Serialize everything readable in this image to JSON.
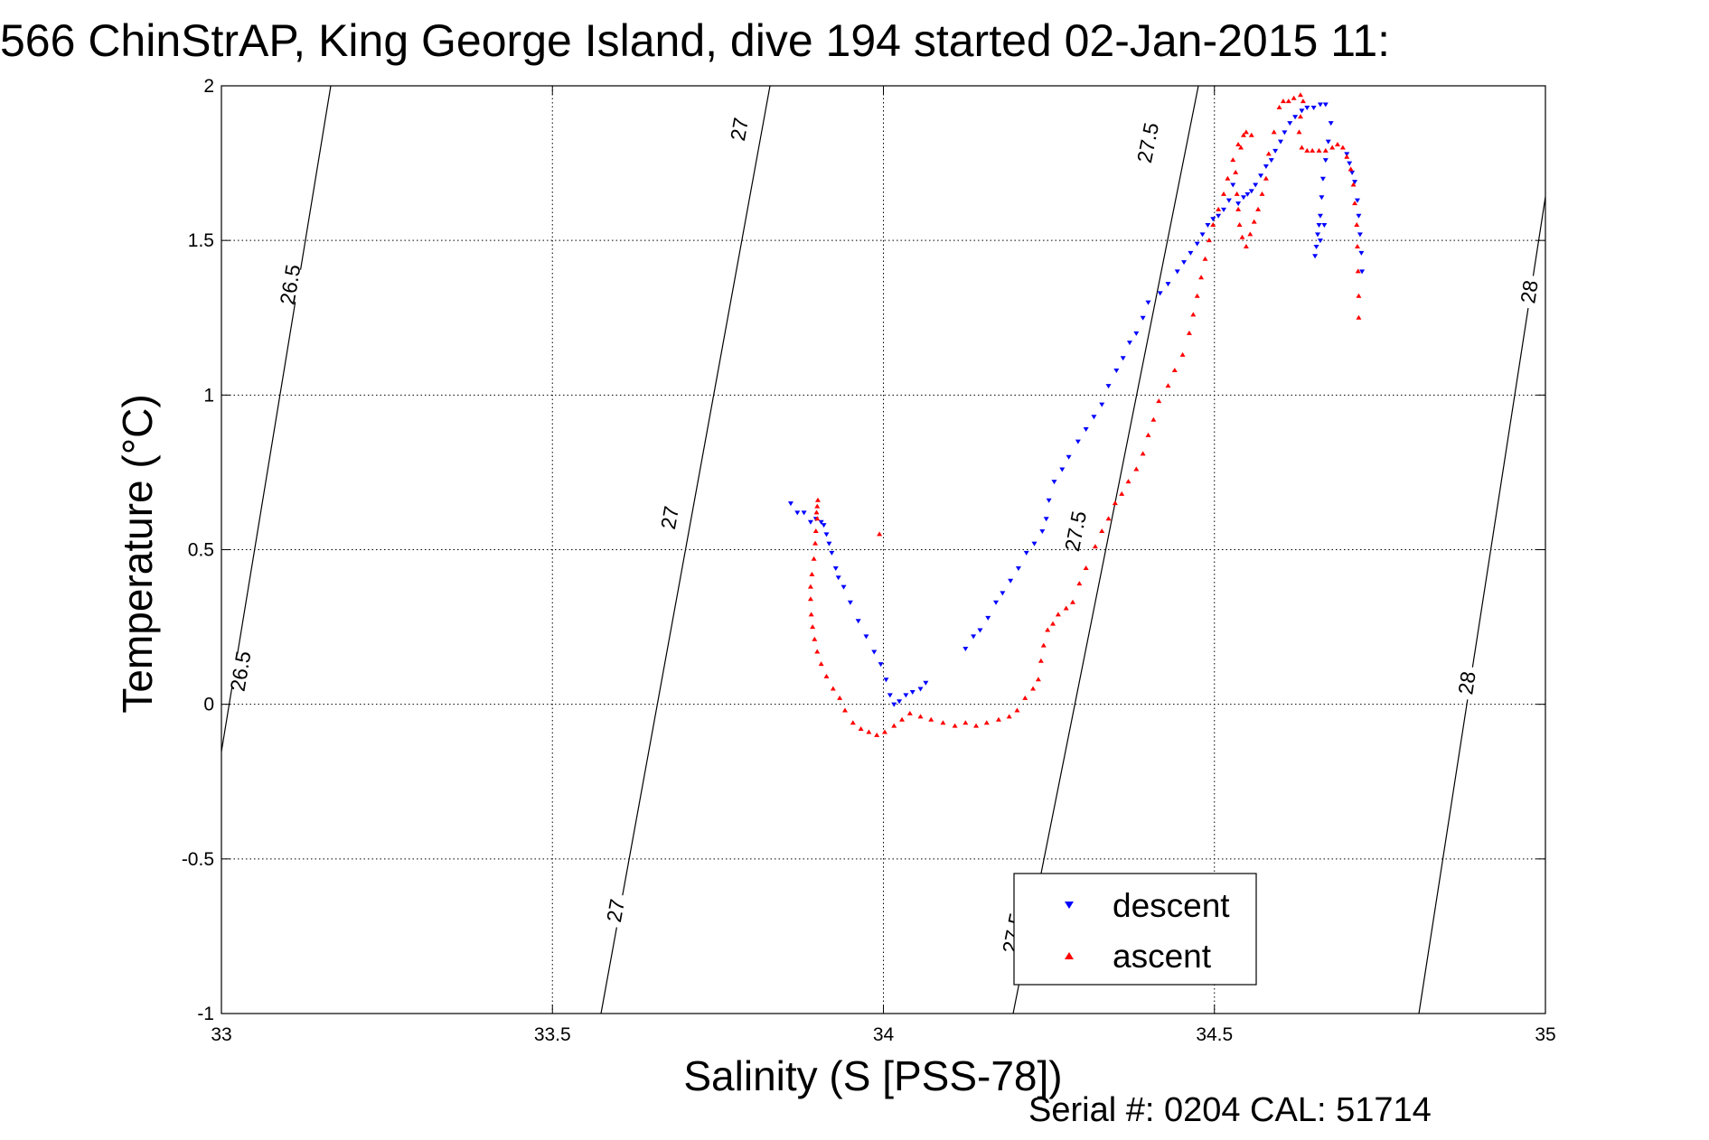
{
  "title": "566 ChinStrAP, King George Island, dive 194 started 02-Jan-2015 11:",
  "footer": "Serial #: 0204  CAL: 51714",
  "chart_data": {
    "type": "scatter",
    "title": "566 ChinStrAP, King George Island, dive 194 started 02-Jan-2015 11:",
    "xlabel": "Salinity (S [PSS-78])",
    "ylabel": "Temperature (°C)",
    "xlim": [
      33,
      35
    ],
    "ylim": [
      -1,
      2
    ],
    "xticks": [
      33,
      33.5,
      34,
      34.5,
      35
    ],
    "yticks": [
      -1,
      -0.5,
      0,
      0.5,
      1,
      1.5,
      2
    ],
    "xtick_labels": [
      "33",
      "33.5",
      "34",
      "34.5",
      "35"
    ],
    "ytick_labels": [
      "-1",
      "-0.5",
      "0",
      "0.5",
      "1",
      "1.5",
      "2"
    ],
    "grid": true,
    "legend_position": "bottom-center",
    "series": [
      {
        "name": "descent",
        "marker": "triangle-down",
        "color": "#0000ff",
        "points": [
          [
            34.668,
            1.94
          ],
          [
            34.66,
            1.94
          ],
          [
            34.65,
            1.93
          ],
          [
            34.64,
            1.93
          ],
          [
            34.632,
            1.92
          ],
          [
            34.622,
            1.9
          ],
          [
            34.614,
            1.88
          ],
          [
            34.606,
            1.85
          ],
          [
            34.6,
            1.82
          ],
          [
            34.592,
            1.79
          ],
          [
            34.586,
            1.76
          ],
          [
            34.578,
            1.74
          ],
          [
            34.57,
            1.71
          ],
          [
            34.562,
            1.68
          ],
          [
            34.556,
            1.66
          ],
          [
            34.55,
            1.65
          ],
          [
            34.544,
            1.64
          ],
          [
            34.536,
            1.62
          ],
          [
            34.528,
            1.68
          ],
          [
            34.522,
            1.63
          ],
          [
            34.514,
            1.6
          ],
          [
            34.506,
            1.58
          ],
          [
            34.498,
            1.57
          ],
          [
            34.49,
            1.55
          ],
          [
            34.482,
            1.52
          ],
          [
            34.474,
            1.49
          ],
          [
            34.464,
            1.46
          ],
          [
            34.454,
            1.43
          ],
          [
            34.444,
            1.4
          ],
          [
            34.43,
            1.36
          ],
          [
            34.418,
            1.33
          ],
          [
            34.4,
            1.3
          ],
          [
            34.392,
            1.25
          ],
          [
            34.382,
            1.2
          ],
          [
            34.372,
            1.17
          ],
          [
            34.362,
            1.12
          ],
          [
            34.352,
            1.08
          ],
          [
            34.34,
            1.03
          ],
          [
            34.33,
            0.97
          ],
          [
            34.318,
            0.93
          ],
          [
            34.306,
            0.89
          ],
          [
            34.294,
            0.85
          ],
          [
            34.28,
            0.8
          ],
          [
            34.27,
            0.76
          ],
          [
            34.258,
            0.72
          ],
          [
            34.25,
            0.66
          ],
          [
            34.246,
            0.6
          ],
          [
            34.24,
            0.56
          ],
          [
            34.228,
            0.52
          ],
          [
            34.216,
            0.49
          ],
          [
            34.204,
            0.44
          ],
          [
            34.192,
            0.4
          ],
          [
            34.18,
            0.36
          ],
          [
            34.17,
            0.33
          ],
          [
            34.158,
            0.28
          ],
          [
            34.146,
            0.24
          ],
          [
            34.136,
            0.22
          ],
          [
            34.124,
            0.18
          ],
          [
            34.064,
            0.07
          ],
          [
            34.056,
            0.05
          ],
          [
            34.044,
            0.04
          ],
          [
            34.034,
            0.03
          ],
          [
            34.024,
            0.01
          ],
          [
            34.016,
            0.0
          ],
          [
            34.01,
            0.03
          ],
          [
            34.004,
            0.08
          ],
          [
            33.996,
            0.13
          ],
          [
            33.986,
            0.17
          ],
          [
            33.974,
            0.22
          ],
          [
            33.962,
            0.27
          ],
          [
            33.95,
            0.33
          ],
          [
            33.94,
            0.38
          ],
          [
            33.932,
            0.41
          ],
          [
            33.928,
            0.44
          ],
          [
            33.922,
            0.49
          ],
          [
            33.918,
            0.52
          ],
          [
            33.914,
            0.55
          ],
          [
            33.91,
            0.58
          ],
          [
            33.906,
            0.59
          ],
          [
            33.898,
            0.6
          ],
          [
            33.89,
            0.59
          ],
          [
            33.88,
            0.62
          ],
          [
            33.87,
            0.62
          ],
          [
            33.86,
            0.65
          ],
          [
            34.676,
            1.88
          ],
          [
            34.672,
            1.82
          ],
          [
            34.668,
            1.76
          ],
          [
            34.664,
            1.7
          ],
          [
            34.662,
            1.64
          ],
          [
            34.66,
            1.58
          ],
          [
            34.658,
            1.55
          ],
          [
            34.656,
            1.52
          ],
          [
            34.654,
            1.48
          ],
          [
            34.652,
            1.45
          ],
          [
            34.66,
            1.5
          ],
          [
            34.666,
            1.55
          ],
          [
            34.7,
            1.78
          ],
          [
            34.704,
            1.75
          ],
          [
            34.708,
            1.72
          ],
          [
            34.712,
            1.69
          ],
          [
            34.716,
            1.63
          ],
          [
            34.718,
            1.58
          ],
          [
            34.72,
            1.52
          ],
          [
            34.722,
            1.46
          ],
          [
            34.723,
            1.4
          ]
        ]
      },
      {
        "name": "ascent",
        "marker": "triangle-up",
        "color": "#ff0000",
        "points": [
          [
            34.718,
            1.25
          ],
          [
            34.718,
            1.32
          ],
          [
            34.717,
            1.4
          ],
          [
            34.716,
            1.48
          ],
          [
            34.715,
            1.55
          ],
          [
            34.712,
            1.62
          ],
          [
            34.71,
            1.68
          ],
          [
            34.706,
            1.73
          ],
          [
            34.7,
            1.77
          ],
          [
            34.694,
            1.8
          ],
          [
            34.686,
            1.81
          ],
          [
            34.678,
            1.8
          ],
          [
            34.668,
            1.79
          ],
          [
            34.658,
            1.79
          ],
          [
            34.648,
            1.79
          ],
          [
            34.64,
            1.79
          ],
          [
            34.632,
            1.8
          ],
          [
            34.628,
            1.85
          ],
          [
            34.63,
            1.9
          ],
          [
            34.634,
            1.95
          ],
          [
            34.63,
            1.97
          ],
          [
            34.62,
            1.96
          ],
          [
            34.612,
            1.95
          ],
          [
            34.604,
            1.95
          ],
          [
            34.598,
            1.93
          ],
          [
            34.59,
            1.85
          ],
          [
            34.582,
            1.78
          ],
          [
            34.578,
            1.7
          ],
          [
            34.572,
            1.65
          ],
          [
            34.566,
            1.6
          ],
          [
            34.56,
            1.56
          ],
          [
            34.554,
            1.52
          ],
          [
            34.548,
            1.48
          ],
          [
            34.542,
            1.51
          ],
          [
            34.538,
            1.55
          ],
          [
            34.536,
            1.6
          ],
          [
            34.534,
            1.65
          ],
          [
            34.532,
            1.72
          ],
          [
            34.54,
            1.8
          ],
          [
            34.548,
            1.85
          ],
          [
            34.556,
            1.84
          ],
          [
            34.544,
            1.84
          ],
          [
            34.536,
            1.81
          ],
          [
            34.528,
            1.76
          ],
          [
            34.52,
            1.7
          ],
          [
            34.514,
            1.65
          ],
          [
            34.506,
            1.6
          ],
          [
            34.498,
            1.55
          ],
          [
            34.492,
            1.5
          ],
          [
            34.486,
            1.44
          ],
          [
            34.48,
            1.38
          ],
          [
            34.474,
            1.32
          ],
          [
            34.468,
            1.26
          ],
          [
            34.462,
            1.2
          ],
          [
            34.452,
            1.13
          ],
          [
            34.44,
            1.08
          ],
          [
            34.43,
            1.03
          ],
          [
            34.416,
            0.98
          ],
          [
            34.408,
            0.92
          ],
          [
            34.4,
            0.87
          ],
          [
            34.392,
            0.81
          ],
          [
            34.382,
            0.76
          ],
          [
            34.37,
            0.72
          ],
          [
            34.36,
            0.68
          ],
          [
            34.35,
            0.65
          ],
          [
            34.34,
            0.6
          ],
          [
            34.33,
            0.56
          ],
          [
            34.32,
            0.51
          ],
          [
            34.306,
            0.44
          ],
          [
            34.296,
            0.39
          ],
          [
            34.286,
            0.33
          ],
          [
            34.276,
            0.31
          ],
          [
            34.264,
            0.29
          ],
          [
            34.256,
            0.26
          ],
          [
            34.248,
            0.24
          ],
          [
            34.242,
            0.19
          ],
          [
            34.238,
            0.14
          ],
          [
            34.234,
            0.08
          ],
          [
            34.226,
            0.05
          ],
          [
            34.214,
            0.02
          ],
          [
            34.202,
            -0.02
          ],
          [
            34.19,
            -0.04
          ],
          [
            34.174,
            -0.05
          ],
          [
            34.156,
            -0.06
          ],
          [
            34.14,
            -0.07
          ],
          [
            34.124,
            -0.06
          ],
          [
            34.108,
            -0.07
          ],
          [
            34.09,
            -0.06
          ],
          [
            34.072,
            -0.05
          ],
          [
            34.056,
            -0.04
          ],
          [
            34.04,
            -0.03
          ],
          [
            34.028,
            -0.05
          ],
          [
            34.016,
            -0.07
          ],
          [
            34.002,
            -0.09
          ],
          [
            33.99,
            -0.1
          ],
          [
            33.978,
            -0.09
          ],
          [
            33.966,
            -0.08
          ],
          [
            33.954,
            -0.06
          ],
          [
            33.942,
            -0.02
          ],
          [
            33.934,
            0.02
          ],
          [
            33.924,
            0.05
          ],
          [
            33.914,
            0.09
          ],
          [
            33.906,
            0.13
          ],
          [
            33.9,
            0.17
          ],
          [
            33.896,
            0.21
          ],
          [
            33.893,
            0.25
          ],
          [
            33.891,
            0.29
          ],
          [
            33.89,
            0.34
          ],
          [
            33.89,
            0.38
          ],
          [
            33.892,
            0.42
          ],
          [
            33.895,
            0.47
          ],
          [
            33.897,
            0.52
          ],
          [
            33.898,
            0.56
          ],
          [
            33.9,
            0.6
          ],
          [
            33.9,
            0.64
          ],
          [
            33.901,
            0.66
          ],
          [
            33.899,
            0.62
          ],
          [
            33.994,
            0.55
          ]
        ]
      }
    ],
    "isopycnals": [
      {
        "sigma": 26.5,
        "labels": [
          "26.5",
          "26.5"
        ]
      },
      {
        "sigma": 27,
        "labels": [
          "27",
          "27",
          "27"
        ]
      },
      {
        "sigma": 27.5,
        "labels": [
          "27.5",
          "27.5",
          "27.5"
        ]
      },
      {
        "sigma": 28,
        "labels": [
          "28",
          "28"
        ]
      }
    ]
  }
}
